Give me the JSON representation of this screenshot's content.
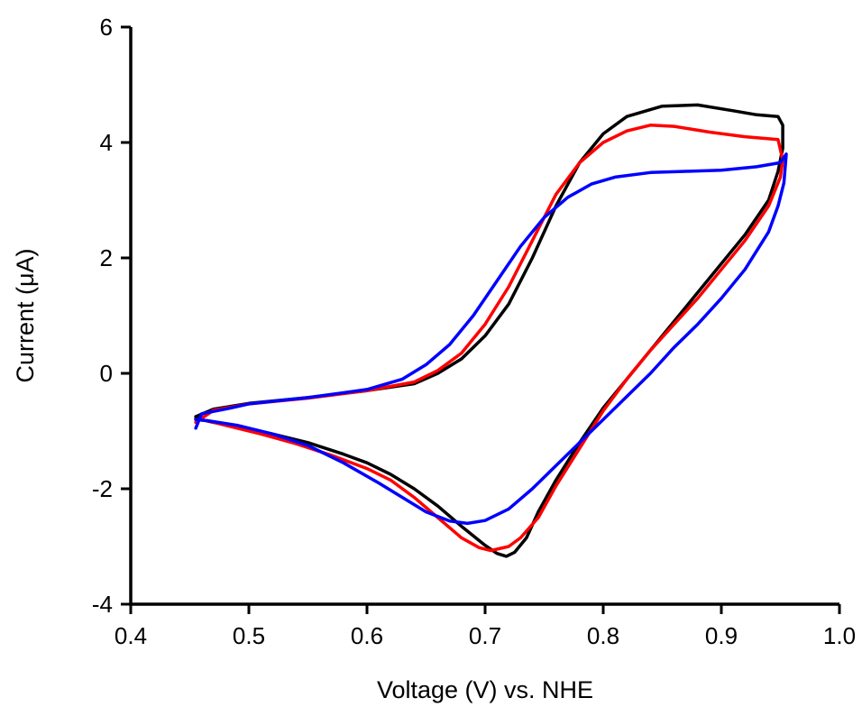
{
  "chart_data": {
    "type": "line",
    "title": "",
    "xlabel": "Voltage (V) vs. NHE",
    "ylabel": "Current (μA)",
    "xlim": [
      0.4,
      1.0
    ],
    "ylim": [
      -4,
      6
    ],
    "x_ticks": [
      "0.4",
      "0.5",
      "0.6",
      "0.7",
      "0.8",
      "0.9",
      "1.0"
    ],
    "y_ticks": [
      "-4",
      "-2",
      "0",
      "2",
      "4",
      "6"
    ],
    "grid": false,
    "legend": "none",
    "series": [
      {
        "color": "#000000",
        "points": [
          [
            0.455,
            -0.75
          ],
          [
            0.47,
            -0.62
          ],
          [
            0.5,
            -0.52
          ],
          [
            0.55,
            -0.42
          ],
          [
            0.6,
            -0.3
          ],
          [
            0.64,
            -0.18
          ],
          [
            0.66,
            0.0
          ],
          [
            0.68,
            0.25
          ],
          [
            0.7,
            0.65
          ],
          [
            0.72,
            1.2
          ],
          [
            0.74,
            2.0
          ],
          [
            0.76,
            2.9
          ],
          [
            0.78,
            3.65
          ],
          [
            0.8,
            4.15
          ],
          [
            0.82,
            4.45
          ],
          [
            0.85,
            4.63
          ],
          [
            0.88,
            4.65
          ],
          [
            0.91,
            4.55
          ],
          [
            0.93,
            4.48
          ],
          [
            0.948,
            4.45
          ],
          [
            0.952,
            4.3
          ],
          [
            0.952,
            3.9
          ],
          [
            0.948,
            3.5
          ],
          [
            0.94,
            3.0
          ],
          [
            0.92,
            2.4
          ],
          [
            0.9,
            1.9
          ],
          [
            0.88,
            1.4
          ],
          [
            0.86,
            0.9
          ],
          [
            0.84,
            0.4
          ],
          [
            0.82,
            -0.1
          ],
          [
            0.8,
            -0.6
          ],
          [
            0.78,
            -1.2
          ],
          [
            0.76,
            -1.85
          ],
          [
            0.745,
            -2.4
          ],
          [
            0.735,
            -2.85
          ],
          [
            0.725,
            -3.1
          ],
          [
            0.718,
            -3.17
          ],
          [
            0.71,
            -3.12
          ],
          [
            0.7,
            -2.98
          ],
          [
            0.68,
            -2.65
          ],
          [
            0.66,
            -2.3
          ],
          [
            0.64,
            -2.0
          ],
          [
            0.62,
            -1.75
          ],
          [
            0.6,
            -1.55
          ],
          [
            0.58,
            -1.4
          ],
          [
            0.55,
            -1.2
          ],
          [
            0.52,
            -1.05
          ],
          [
            0.49,
            -0.92
          ],
          [
            0.47,
            -0.85
          ],
          [
            0.455,
            -0.78
          ]
        ]
      },
      {
        "color": "#ff0000",
        "points": [
          [
            0.455,
            -0.85
          ],
          [
            0.47,
            -0.64
          ],
          [
            0.5,
            -0.53
          ],
          [
            0.55,
            -0.43
          ],
          [
            0.6,
            -0.3
          ],
          [
            0.64,
            -0.15
          ],
          [
            0.66,
            0.05
          ],
          [
            0.68,
            0.35
          ],
          [
            0.7,
            0.85
          ],
          [
            0.72,
            1.5
          ],
          [
            0.74,
            2.3
          ],
          [
            0.76,
            3.1
          ],
          [
            0.78,
            3.65
          ],
          [
            0.8,
            4.0
          ],
          [
            0.82,
            4.2
          ],
          [
            0.84,
            4.3
          ],
          [
            0.86,
            4.28
          ],
          [
            0.89,
            4.18
          ],
          [
            0.92,
            4.1
          ],
          [
            0.948,
            4.05
          ],
          [
            0.952,
            3.7
          ],
          [
            0.95,
            3.4
          ],
          [
            0.94,
            2.9
          ],
          [
            0.92,
            2.3
          ],
          [
            0.9,
            1.8
          ],
          [
            0.88,
            1.3
          ],
          [
            0.86,
            0.85
          ],
          [
            0.84,
            0.4
          ],
          [
            0.82,
            -0.1
          ],
          [
            0.8,
            -0.65
          ],
          [
            0.78,
            -1.3
          ],
          [
            0.76,
            -1.95
          ],
          [
            0.745,
            -2.5
          ],
          [
            0.73,
            -2.85
          ],
          [
            0.72,
            -3.0
          ],
          [
            0.705,
            -3.07
          ],
          [
            0.695,
            -3.02
          ],
          [
            0.68,
            -2.85
          ],
          [
            0.66,
            -2.5
          ],
          [
            0.64,
            -2.15
          ],
          [
            0.62,
            -1.85
          ],
          [
            0.6,
            -1.65
          ],
          [
            0.57,
            -1.42
          ],
          [
            0.54,
            -1.22
          ],
          [
            0.51,
            -1.05
          ],
          [
            0.48,
            -0.9
          ],
          [
            0.465,
            -0.82
          ],
          [
            0.455,
            -0.8
          ]
        ]
      },
      {
        "color": "#0000ff",
        "points": [
          [
            0.455,
            -0.95
          ],
          [
            0.46,
            -0.7
          ],
          [
            0.48,
            -0.62
          ],
          [
            0.5,
            -0.53
          ],
          [
            0.55,
            -0.42
          ],
          [
            0.6,
            -0.28
          ],
          [
            0.63,
            -0.1
          ],
          [
            0.65,
            0.15
          ],
          [
            0.67,
            0.5
          ],
          [
            0.69,
            1.0
          ],
          [
            0.71,
            1.6
          ],
          [
            0.73,
            2.2
          ],
          [
            0.75,
            2.7
          ],
          [
            0.77,
            3.05
          ],
          [
            0.79,
            3.28
          ],
          [
            0.81,
            3.4
          ],
          [
            0.84,
            3.48
          ],
          [
            0.87,
            3.5
          ],
          [
            0.9,
            3.52
          ],
          [
            0.93,
            3.58
          ],
          [
            0.95,
            3.65
          ],
          [
            0.955,
            3.8
          ],
          [
            0.953,
            3.3
          ],
          [
            0.948,
            2.9
          ],
          [
            0.94,
            2.45
          ],
          [
            0.92,
            1.8
          ],
          [
            0.9,
            1.3
          ],
          [
            0.88,
            0.85
          ],
          [
            0.86,
            0.45
          ],
          [
            0.84,
            0.0
          ],
          [
            0.82,
            -0.4
          ],
          [
            0.8,
            -0.8
          ],
          [
            0.78,
            -1.2
          ],
          [
            0.76,
            -1.6
          ],
          [
            0.74,
            -2.0
          ],
          [
            0.72,
            -2.35
          ],
          [
            0.7,
            -2.55
          ],
          [
            0.685,
            -2.6
          ],
          [
            0.67,
            -2.56
          ],
          [
            0.65,
            -2.4
          ],
          [
            0.63,
            -2.15
          ],
          [
            0.61,
            -1.9
          ],
          [
            0.58,
            -1.55
          ],
          [
            0.55,
            -1.25
          ],
          [
            0.52,
            -1.05
          ],
          [
            0.49,
            -0.9
          ],
          [
            0.465,
            -0.82
          ],
          [
            0.455,
            -0.8
          ]
        ]
      }
    ]
  }
}
